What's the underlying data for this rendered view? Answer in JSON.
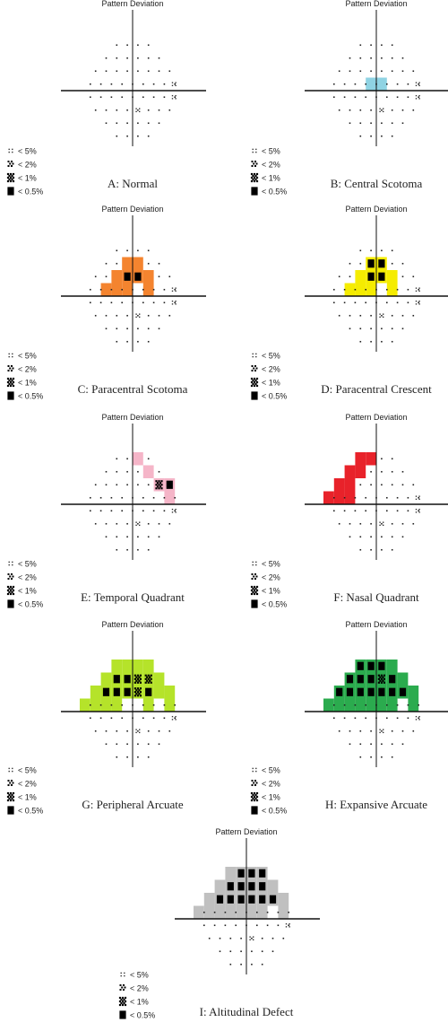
{
  "diagram_title": "Pattern Deviation",
  "legend": [
    {
      "symbol": "dots",
      "label": "< 5%"
    },
    {
      "symbol": "checker",
      "label": "< 2%"
    },
    {
      "symbol": "dense",
      "label": "< 1%"
    },
    {
      "symbol": "solid",
      "label": "< 0.5%"
    }
  ],
  "panels": [
    {
      "id": "A",
      "caption": "A: Normal",
      "fill": "",
      "cells": []
    },
    {
      "id": "B",
      "caption": "B: Central Scotoma",
      "fill": "#8fd3e3",
      "cells": [
        [
          -1,
          -1,
          "dense"
        ],
        [
          0,
          -1,
          "solid"
        ]
      ]
    },
    {
      "id": "C",
      "caption": "C: Paracentral Scotoma",
      "fill": "#f4842f",
      "cells": [
        [
          -1,
          -3,
          "fill"
        ],
        [
          0,
          -3,
          "fill"
        ],
        [
          -2,
          -2,
          "fill"
        ],
        [
          -1,
          -2,
          "solid"
        ],
        [
          0,
          -2,
          "solid"
        ],
        [
          1,
          -2,
          "fill"
        ],
        [
          -3,
          -1,
          "fill"
        ],
        [
          -2,
          -1,
          "solid"
        ],
        [
          -1,
          -1,
          "fill"
        ],
        [
          1,
          -1,
          "fill"
        ]
      ]
    },
    {
      "id": "D",
      "caption": "D: Paracentral Crescent",
      "fill": "#f5ec00",
      "cells": [
        [
          -1,
          -3,
          "solid"
        ],
        [
          0,
          -3,
          "solid"
        ],
        [
          -2,
          -2,
          "fill"
        ],
        [
          -1,
          -2,
          "solid"
        ],
        [
          0,
          -2,
          "solid"
        ],
        [
          1,
          -2,
          "fill"
        ],
        [
          -3,
          -1,
          "solid"
        ],
        [
          -2,
          -1,
          "fill"
        ],
        [
          -1,
          -1,
          "fill"
        ],
        [
          1,
          -1,
          "fill"
        ]
      ]
    },
    {
      "id": "E",
      "caption": "E: Temporal Quadrant",
      "fill": "#f5b5c8",
      "cells": [
        [
          0,
          -4,
          "fill"
        ],
        [
          1,
          -3,
          "fill"
        ],
        [
          2,
          -2,
          "dense"
        ],
        [
          3,
          -2,
          "solid"
        ],
        [
          3,
          -1,
          "solid"
        ]
      ]
    },
    {
      "id": "F",
      "caption": "F: Nasal Quadrant",
      "fill": "#e8222a",
      "cells": [
        [
          -2,
          -4,
          "fill"
        ],
        [
          -1,
          -4,
          "fill"
        ],
        [
          -3,
          -3,
          "fill"
        ],
        [
          -2,
          -3,
          "fill"
        ],
        [
          -4,
          -2,
          "fill"
        ],
        [
          -3,
          -2,
          "fill"
        ],
        [
          -5,
          -1,
          "solid"
        ],
        [
          -4,
          -1,
          "solid"
        ],
        [
          -3,
          -1,
          "fill"
        ]
      ]
    },
    {
      "id": "G",
      "caption": "G: Peripheral Arcuate",
      "fill": "#b5e32a",
      "cells": [
        [
          -2,
          -4,
          "fill"
        ],
        [
          -1,
          -4,
          "fill"
        ],
        [
          0,
          -4,
          "fill"
        ],
        [
          1,
          -4,
          "fill"
        ],
        [
          -3,
          -3,
          "fill"
        ],
        [
          -2,
          -3,
          "solid"
        ],
        [
          -1,
          -3,
          "solid"
        ],
        [
          0,
          -3,
          "dense"
        ],
        [
          1,
          -3,
          "dense"
        ],
        [
          2,
          -3,
          "fill"
        ],
        [
          -4,
          -2,
          "fill"
        ],
        [
          -3,
          -2,
          "solid"
        ],
        [
          -2,
          -2,
          "solid"
        ],
        [
          -1,
          -2,
          "solid"
        ],
        [
          0,
          -2,
          "dense"
        ],
        [
          1,
          -2,
          "solid"
        ],
        [
          2,
          -2,
          "fill"
        ],
        [
          3,
          -2,
          "fill"
        ],
        [
          -5,
          -1,
          "fill"
        ],
        [
          -4,
          -1,
          "solid"
        ],
        [
          -3,
          -1,
          "solid"
        ],
        [
          -2,
          -1,
          "dense"
        ],
        [
          1,
          -1,
          "fill"
        ],
        [
          3,
          -1,
          "fill"
        ]
      ]
    },
    {
      "id": "H",
      "caption": "H: Expansive Arcuate",
      "fill": "#2bab4e",
      "cells": [
        [
          -2,
          -4,
          "solid"
        ],
        [
          -1,
          -4,
          "solid"
        ],
        [
          0,
          -4,
          "solid"
        ],
        [
          1,
          -4,
          "fill"
        ],
        [
          -3,
          -3,
          "solid"
        ],
        [
          -2,
          -3,
          "solid"
        ],
        [
          -1,
          -3,
          "solid"
        ],
        [
          0,
          -3,
          "dense"
        ],
        [
          1,
          -3,
          "solid"
        ],
        [
          2,
          -3,
          "fill"
        ],
        [
          -4,
          -2,
          "solid"
        ],
        [
          -3,
          -2,
          "solid"
        ],
        [
          -2,
          -2,
          "solid"
        ],
        [
          -1,
          -2,
          "solid"
        ],
        [
          0,
          -2,
          "solid"
        ],
        [
          1,
          -2,
          "solid"
        ],
        [
          2,
          -2,
          "solid"
        ],
        [
          3,
          -2,
          "fill"
        ],
        [
          -5,
          -1,
          "solid"
        ],
        [
          -4,
          -1,
          "solid"
        ],
        [
          -3,
          -1,
          "solid"
        ],
        [
          -2,
          -1,
          "solid"
        ],
        [
          -1,
          -1,
          "solid"
        ],
        [
          0,
          -1,
          "dense"
        ],
        [
          1,
          -1,
          "solid"
        ],
        [
          3,
          -1,
          "fill"
        ]
      ]
    },
    {
      "id": "I",
      "caption": "I: Altitudinal Defect",
      "fill": "#c0c0c0",
      "cells": [
        [
          -2,
          -4,
          "fill"
        ],
        [
          -1,
          -4,
          "solid"
        ],
        [
          0,
          -4,
          "solid"
        ],
        [
          1,
          -4,
          "solid"
        ],
        [
          -3,
          -3,
          "fill"
        ],
        [
          -2,
          -3,
          "solid"
        ],
        [
          -1,
          -3,
          "solid"
        ],
        [
          0,
          -3,
          "solid"
        ],
        [
          1,
          -3,
          "solid"
        ],
        [
          2,
          -3,
          "fill"
        ],
        [
          -4,
          -2,
          "fill"
        ],
        [
          -3,
          -2,
          "solid"
        ],
        [
          -2,
          -2,
          "solid"
        ],
        [
          -1,
          -2,
          "solid"
        ],
        [
          0,
          -2,
          "solid"
        ],
        [
          1,
          -2,
          "solid"
        ],
        [
          2,
          -2,
          "solid"
        ],
        [
          3,
          -2,
          "fill"
        ],
        [
          -5,
          -1,
          "solid"
        ],
        [
          -4,
          -1,
          "solid"
        ],
        [
          -3,
          -1,
          "solid"
        ],
        [
          -2,
          -1,
          "solid"
        ],
        [
          -1,
          -1,
          "solid"
        ],
        [
          0,
          -1,
          "solid"
        ],
        [
          1,
          -1,
          "solid"
        ],
        [
          3,
          -1,
          "solid"
        ]
      ]
    }
  ]
}
